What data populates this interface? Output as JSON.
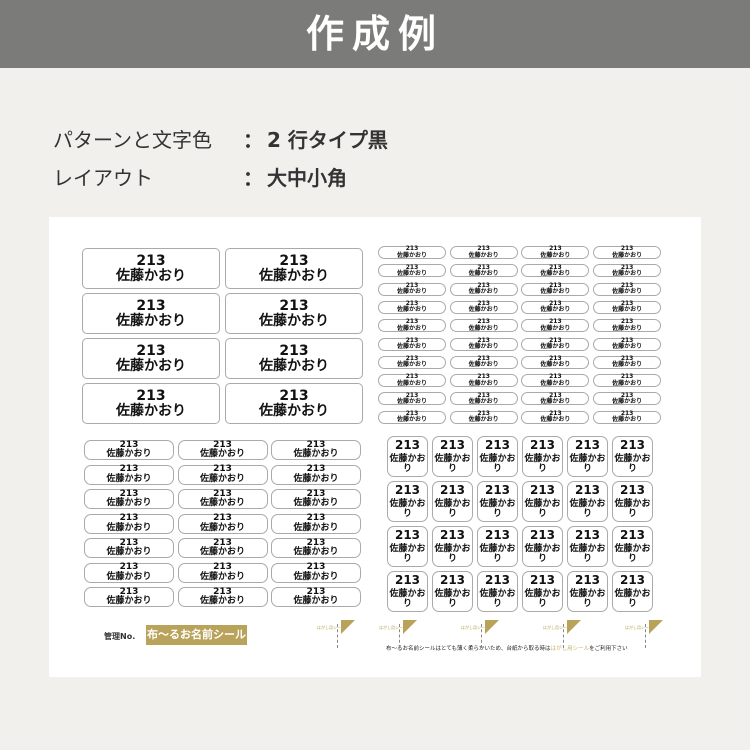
{
  "header": {
    "title": "作成例"
  },
  "spec": [
    {
      "key": "パターンと文字色",
      "sep": "：",
      "value": "2 行タイプ黒"
    },
    {
      "key": "レイアウト",
      "sep": "：",
      "value": "大中小角"
    }
  ],
  "label": {
    "line1": "213",
    "line2": "佐藤かおり"
  },
  "sheet": {
    "large_count": 8,
    "medium_count": 21,
    "small_count": 40,
    "square_count": 24,
    "kanri": "管理No.",
    "brand": "布～るお名前シール",
    "tab_text": "はがし用シール",
    "note_pre": "布～るお名前シールはとても薄く柔らかいため、台紙から取る時は",
    "note_hl": "はがし用シール",
    "note_post": "をご利用下さい"
  },
  "colors": {
    "header": "#7b7b79",
    "gold": "#b9a35b",
    "background": "#f2f0ed"
  }
}
